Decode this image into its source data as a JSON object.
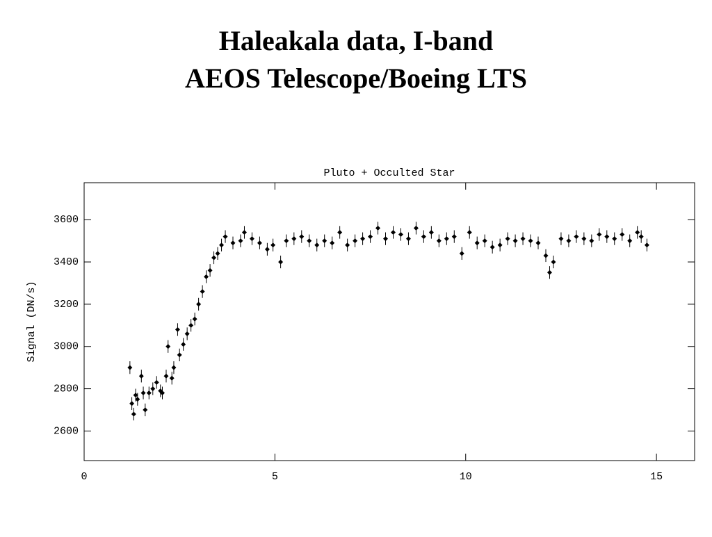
{
  "header": {
    "title_lines": [
      "Haleakala data, I-band",
      "AEOS Telescope/Boeing LTS"
    ]
  },
  "chart_data": {
    "type": "scatter",
    "title": "Pluto + Occulted Star",
    "y_label": "Signal (DN/s)",
    "color": "#000000",
    "error_bar": 30,
    "xlim": [
      0,
      16
    ],
    "xticks": [
      0,
      5,
      10,
      15
    ],
    "ylim": [
      2460,
      3775
    ],
    "yticks": [
      2600,
      2800,
      3000,
      3200,
      3400,
      3600
    ],
    "x": [
      1.2,
      1.25,
      1.3,
      1.35,
      1.4,
      1.5,
      1.55,
      1.6,
      1.7,
      1.8,
      1.9,
      2.0,
      2.05,
      2.15,
      2.2,
      2.3,
      2.35,
      2.45,
      2.5,
      2.6,
      2.7,
      2.8,
      2.9,
      3.0,
      3.1,
      3.2,
      3.3,
      3.4,
      3.5,
      3.6,
      3.7,
      3.9,
      4.1,
      4.2,
      4.4,
      4.6,
      4.8,
      4.95,
      5.15,
      5.3,
      5.5,
      5.7,
      5.9,
      6.1,
      6.3,
      6.5,
      6.7,
      6.9,
      7.1,
      7.3,
      7.5,
      7.7,
      7.9,
      8.1,
      8.3,
      8.5,
      8.7,
      8.9,
      9.1,
      9.3,
      9.5,
      9.7,
      9.9,
      10.1,
      10.3,
      10.5,
      10.7,
      10.9,
      11.1,
      11.3,
      11.5,
      11.7,
      11.9,
      12.1,
      12.2,
      12.3,
      12.5,
      12.7,
      12.9,
      13.1,
      13.3,
      13.5,
      13.7,
      13.9,
      14.1,
      14.3,
      14.5,
      14.6,
      14.75
    ],
    "values": [
      2900,
      2730,
      2680,
      2770,
      2750,
      2860,
      2780,
      2700,
      2780,
      2800,
      2830,
      2790,
      2780,
      2860,
      3000,
      2850,
      2900,
      3080,
      2960,
      3010,
      3060,
      3100,
      3130,
      3200,
      3260,
      3330,
      3360,
      3420,
      3440,
      3480,
      3520,
      3490,
      3500,
      3540,
      3510,
      3490,
      3460,
      3480,
      3400,
      3500,
      3510,
      3520,
      3500,
      3480,
      3500,
      3490,
      3540,
      3480,
      3500,
      3510,
      3520,
      3560,
      3510,
      3540,
      3530,
      3510,
      3560,
      3520,
      3540,
      3500,
      3510,
      3520,
      3440,
      3540,
      3490,
      3500,
      3470,
      3480,
      3510,
      3500,
      3510,
      3500,
      3490,
      3430,
      3350,
      3400,
      3510,
      3500,
      3520,
      3510,
      3500,
      3530,
      3520,
      3510,
      3530,
      3500,
      3540,
      3520,
      3480
    ]
  }
}
